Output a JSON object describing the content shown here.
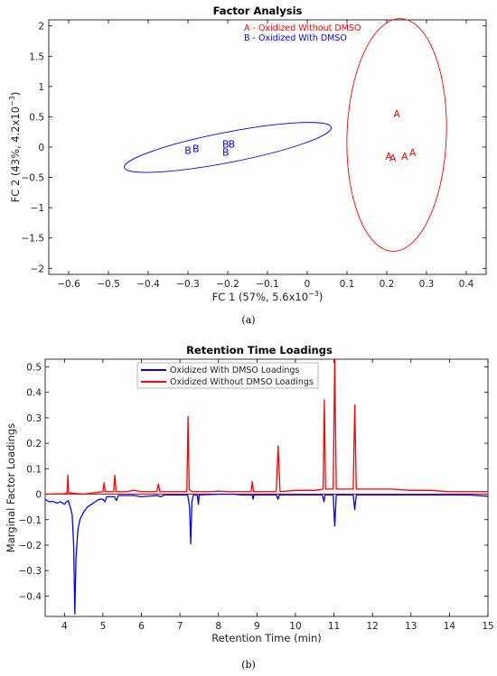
{
  "colors": {
    "a": "#ff0000",
    "b": "#0000ff",
    "axis": "#000000"
  },
  "chart_data": [
    {
      "type": "scatter",
      "title": "Factor Analysis",
      "xlabel": "FC 1 (57%, 5.6x10",
      "xlabel_exp": "−3",
      "xlabel_close": ")",
      "ylabel": "FC 2 (43%, 4.2x10",
      "ylabel_exp": "−3",
      "ylabel_close": ")",
      "xlim": [
        -0.65,
        0.45
      ],
      "ylim": [
        -2.1,
        2.1
      ],
      "xticks": [
        -0.6,
        -0.5,
        -0.4,
        -0.3,
        -0.2,
        -0.1,
        0,
        0.1,
        0.2,
        0.3,
        0.4
      ],
      "xtick_labels": [
        "−0.6",
        "−0.5",
        "−0.4",
        "−0.3",
        "−0.2",
        "−0.1",
        "0",
        "0.1",
        "0.2",
        "0.3",
        "0.4"
      ],
      "yticks": [
        -2,
        -1.5,
        -1,
        -0.5,
        0,
        0.5,
        1,
        1.5,
        2
      ],
      "ytick_labels": [
        "−2",
        "−1.5",
        "−1",
        "−0.5",
        "0",
        "0.5",
        "1",
        "1.5",
        "2"
      ],
      "legend": {
        "position": "top",
        "entries": [
          {
            "text": "A - Oxidized Without DMSO",
            "color_key": "a"
          },
          {
            "text": "B - Oxidized With DMSO",
            "color_key": "b"
          }
        ]
      },
      "series": [
        {
          "name": "A - Oxidized Without DMSO",
          "color_key": "a",
          "label": "A",
          "points": [
            [
              0.225,
              0.55
            ],
            [
              0.205,
              -0.15
            ],
            [
              0.215,
              -0.18
            ],
            [
              0.245,
              -0.15
            ],
            [
              0.265,
              -0.09
            ]
          ],
          "ellipse": {
            "cx": 0.225,
            "cy": 0.2,
            "rx": 0.125,
            "ry": 1.92,
            "angle": -2
          }
        },
        {
          "name": "B - Oxidized With DMSO",
          "color_key": "b",
          "label": "B",
          "points": [
            [
              -0.3,
              -0.05
            ],
            [
              -0.28,
              -0.02
            ],
            [
              -0.205,
              0.05
            ],
            [
              -0.19,
              0.05
            ],
            [
              -0.205,
              -0.08
            ]
          ],
          "ellipse": {
            "cx": -0.2,
            "cy": -0.005,
            "rx": 0.265,
            "ry": 0.25,
            "angle": 11
          }
        }
      ],
      "caption": "(a)"
    },
    {
      "type": "line",
      "title": "Retention Time Loadings",
      "xlabel": "Retention Time (min)",
      "ylabel": "Marginal Factor Loadings",
      "xlim": [
        3.5,
        15
      ],
      "ylim": [
        -0.48,
        0.53
      ],
      "xticks": [
        4,
        5,
        6,
        7,
        8,
        9,
        10,
        11,
        12,
        13,
        14,
        15
      ],
      "xtick_labels": [
        "4",
        "5",
        "6",
        "7",
        "8",
        "9",
        "10",
        "11",
        "12",
        "13",
        "14",
        "15"
      ],
      "yticks": [
        -0.4,
        -0.3,
        -0.2,
        -0.1,
        0,
        0.1,
        0.2,
        0.3,
        0.4,
        0.5
      ],
      "ytick_labels": [
        "−0.4",
        "−0.3",
        "−0.2",
        "−0.1",
        "0",
        "0.1",
        "0.2",
        "0.3",
        "0.4",
        "0.5"
      ],
      "legend": {
        "position": "top",
        "entries": [
          {
            "text": "Oxidized With DMSO Loadings",
            "color_key": "b"
          },
          {
            "text": "Oxidized Without DMSO Loadings",
            "color_key": "a"
          }
        ]
      },
      "series": [
        {
          "name": "Oxidized With DMSO Loadings",
          "color_key": "b",
          "points": [
            [
              3.5,
              -0.02
            ],
            [
              3.6,
              -0.03
            ],
            [
              3.7,
              -0.028
            ],
            [
              3.8,
              -0.035
            ],
            [
              3.9,
              -0.03
            ],
            [
              4.0,
              -0.04
            ],
            [
              4.05,
              -0.03
            ],
            [
              4.1,
              -0.025
            ],
            [
              4.15,
              -0.05
            ],
            [
              4.2,
              -0.08
            ],
            [
              4.24,
              -0.2
            ],
            [
              4.27,
              -0.47
            ],
            [
              4.3,
              -0.25
            ],
            [
              4.35,
              -0.14
            ],
            [
              4.4,
              -0.1
            ],
            [
              4.5,
              -0.07
            ],
            [
              4.6,
              -0.05
            ],
            [
              4.7,
              -0.04
            ],
            [
              4.8,
              -0.03
            ],
            [
              4.9,
              -0.02
            ],
            [
              5.0,
              -0.02
            ],
            [
              5.05,
              -0.03
            ],
            [
              5.1,
              -0.01
            ],
            [
              5.3,
              -0.01
            ],
            [
              5.35,
              -0.025
            ],
            [
              5.4,
              -0.005
            ],
            [
              5.8,
              -0.005
            ],
            [
              6.0,
              -0.01
            ],
            [
              6.4,
              -0.005
            ],
            [
              6.5,
              -0.01
            ],
            [
              6.6,
              -0.003
            ],
            [
              7.2,
              -0.003
            ],
            [
              7.25,
              -0.05
            ],
            [
              7.28,
              -0.195
            ],
            [
              7.31,
              -0.03
            ],
            [
              7.35,
              -0.003
            ],
            [
              7.45,
              -0.003
            ],
            [
              7.48,
              -0.04
            ],
            [
              7.5,
              -0.003
            ],
            [
              8.0,
              0.0
            ],
            [
              8.4,
              0.0
            ],
            [
              8.6,
              -0.003
            ],
            [
              8.88,
              -0.003
            ],
            [
              8.9,
              -0.02
            ],
            [
              8.92,
              -0.003
            ],
            [
              9.5,
              -0.003
            ],
            [
              9.55,
              -0.02
            ],
            [
              9.58,
              -0.003
            ],
            [
              10.7,
              -0.003
            ],
            [
              10.74,
              -0.03
            ],
            [
              10.77,
              -0.003
            ],
            [
              10.98,
              -0.003
            ],
            [
              11.02,
              -0.125
            ],
            [
              11.06,
              -0.003
            ],
            [
              11.5,
              -0.003
            ],
            [
              11.54,
              -0.06
            ],
            [
              11.58,
              -0.003
            ],
            [
              12.5,
              -0.003
            ],
            [
              13.5,
              -0.003
            ],
            [
              14.5,
              -0.003
            ],
            [
              15.0,
              -0.008
            ]
          ]
        },
        {
          "name": "Oxidized Without DMSO Loadings",
          "color_key": "a",
          "points": [
            [
              3.5,
              0.0
            ],
            [
              4.0,
              0.002
            ],
            [
              4.07,
              0.005
            ],
            [
              4.09,
              0.075
            ],
            [
              4.11,
              0.005
            ],
            [
              4.5,
              0.0
            ],
            [
              5.0,
              0.01
            ],
            [
              5.03,
              0.045
            ],
            [
              5.06,
              0.01
            ],
            [
              5.28,
              0.01
            ],
            [
              5.31,
              0.075
            ],
            [
              5.34,
              0.01
            ],
            [
              5.6,
              0.01
            ],
            [
              5.8,
              0.015
            ],
            [
              6.0,
              0.01
            ],
            [
              6.15,
              0.01
            ],
            [
              6.4,
              0.01
            ],
            [
              6.44,
              0.04
            ],
            [
              6.48,
              0.01
            ],
            [
              6.9,
              0.01
            ],
            [
              7.18,
              0.01
            ],
            [
              7.21,
              0.305
            ],
            [
              7.24,
              0.02
            ],
            [
              7.3,
              0.01
            ],
            [
              7.8,
              0.01
            ],
            [
              8.0,
              0.012
            ],
            [
              8.3,
              0.01
            ],
            [
              8.85,
              0.01
            ],
            [
              8.88,
              0.05
            ],
            [
              8.91,
              0.01
            ],
            [
              9.5,
              0.01
            ],
            [
              9.55,
              0.19
            ],
            [
              9.6,
              0.01
            ],
            [
              10.0,
              0.015
            ],
            [
              10.5,
              0.015
            ],
            [
              10.72,
              0.02
            ],
            [
              10.75,
              0.37
            ],
            [
              10.78,
              0.02
            ],
            [
              10.98,
              0.02
            ],
            [
              11.02,
              0.53
            ],
            [
              11.06,
              0.02
            ],
            [
              11.5,
              0.02
            ],
            [
              11.54,
              0.35
            ],
            [
              11.58,
              0.02
            ],
            [
              12.0,
              0.02
            ],
            [
              12.5,
              0.02
            ],
            [
              13.0,
              0.015
            ],
            [
              13.5,
              0.015
            ],
            [
              14.0,
              0.01
            ],
            [
              14.5,
              0.01
            ],
            [
              15.0,
              0.01
            ]
          ]
        }
      ],
      "caption": "(b)"
    }
  ]
}
